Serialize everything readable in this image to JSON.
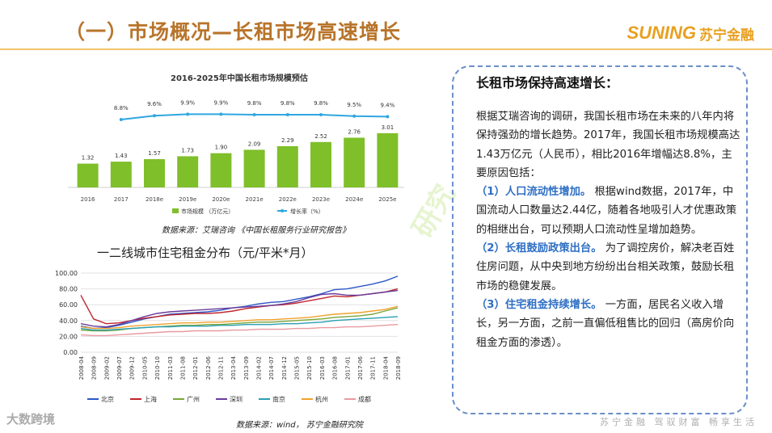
{
  "header": {
    "title": "（一）市场概况—长租市场高速增长",
    "logo_en": "SUNING",
    "logo_cn": "苏宁金融"
  },
  "chart1": {
    "title": "2016-2025年中国长租市场规模预估",
    "source": "数据来源：艾瑞咨询 《中国长租服务行业研究报告》",
    "legend_bar": "市场规模 （万亿元）",
    "legend_line": "增长率（%）"
  },
  "chart2": {
    "title": "一二线城市住宅租金分布（元/平米*月）",
    "source": "数据来源：wind，   苏宁金融研究院"
  },
  "chart_data": [
    {
      "type": "bar",
      "title": "2016-2025年中国长租市场规模预估",
      "categories": [
        "2016",
        "2017",
        "2018e",
        "2019e",
        "2020e",
        "2021e",
        "2022e",
        "2023e",
        "2024e",
        "2025e"
      ],
      "series": [
        {
          "name": "市场规模 （万亿元）",
          "values": [
            1.32,
            1.43,
            1.57,
            1.73,
            1.9,
            2.09,
            2.29,
            2.52,
            2.76,
            3.01
          ],
          "labels": [
            "1.32",
            "1.43",
            "1.57",
            "1.73",
            "1.90",
            "2.09",
            "2.29",
            "2.52",
            "2.76",
            "3.01"
          ]
        },
        {
          "name": "增长率（%）",
          "type": "line",
          "values": [
            null,
            8.8,
            9.6,
            9.9,
            9.9,
            9.8,
            9.8,
            9.8,
            9.5,
            9.4
          ],
          "labels": [
            "",
            "8.8%",
            "9.6%",
            "9.9%",
            "9.9%",
            "9.8%",
            "9.8%",
            "9.8%",
            "9.5%",
            "9.4%"
          ]
        }
      ],
      "colors": {
        "bar": "#7fbf2a",
        "line": "#2ea7e0"
      }
    },
    {
      "type": "line",
      "title": "一二线城市住宅租金分布（元/平米*月）",
      "x": [
        "2008-04",
        "2008-09",
        "2009-02",
        "2009-07",
        "2009-12",
        "2010-05",
        "2010-10",
        "2011-03",
        "2011-08",
        "2012-01",
        "2012-06",
        "2012-11",
        "2013-04",
        "2013-09",
        "2014-02",
        "2014-07",
        "2014-12",
        "2015-05",
        "2015-10",
        "2016-03",
        "2016-08",
        "2017-01",
        "2017-06",
        "2017-11",
        "2018-04",
        "2018-09"
      ],
      "ylim": [
        0,
        100
      ],
      "yticks": [
        "0.00",
        "20.00",
        "40.00",
        "60.00",
        "80.00",
        "100.00"
      ],
      "series": [
        {
          "name": "北京",
          "color": "#2b57c9",
          "values": [
            33,
            30,
            31,
            34,
            38,
            42,
            45,
            48,
            49,
            50,
            51,
            53,
            56,
            58,
            61,
            63,
            64,
            67,
            70,
            74,
            79,
            80,
            83,
            86,
            90,
            96
          ]
        },
        {
          "name": "上海",
          "color": "#c0262d",
          "values": [
            72,
            42,
            36,
            37,
            40,
            43,
            45,
            47,
            48,
            49,
            49,
            50,
            52,
            55,
            57,
            59,
            60,
            62,
            65,
            68,
            71,
            70,
            72,
            74,
            76,
            80
          ]
        },
        {
          "name": "广州",
          "color": "#7aa63a",
          "values": [
            28,
            27,
            27,
            28,
            30,
            31,
            32,
            33,
            34,
            34,
            35,
            35,
            36,
            37,
            38,
            38,
            39,
            40,
            41,
            42,
            44,
            45,
            46,
            48,
            52,
            56
          ]
        },
        {
          "name": "深圳",
          "color": "#6a3d9a",
          "values": [
            36,
            33,
            32,
            35,
            40,
            45,
            49,
            51,
            52,
            53,
            54,
            55,
            56,
            57,
            58,
            59,
            61,
            64,
            69,
            73,
            74,
            72,
            72,
            74,
            76,
            78
          ]
        },
        {
          "name": "南京",
          "color": "#2a9fb3",
          "values": [
            30,
            28,
            28,
            29,
            30,
            31,
            32,
            32,
            33,
            33,
            33,
            34,
            34,
            35,
            35,
            35,
            36,
            36,
            37,
            38,
            40,
            41,
            42,
            43,
            44,
            45
          ]
        },
        {
          "name": "杭州",
          "color": "#f0a22a",
          "values": [
            32,
            30,
            30,
            31,
            33,
            34,
            35,
            36,
            37,
            37,
            38,
            38,
            39,
            40,
            41,
            41,
            42,
            43,
            44,
            46,
            48,
            49,
            50,
            52,
            54,
            58
          ]
        },
        {
          "name": "成都",
          "color": "#e89aa0",
          "values": [
            22,
            21,
            21,
            22,
            23,
            24,
            25,
            26,
            26,
            27,
            27,
            27,
            28,
            28,
            29,
            29,
            29,
            30,
            30,
            31,
            31,
            32,
            32,
            33,
            34,
            35
          ]
        }
      ]
    }
  ],
  "panel": {
    "title": "长租市场保持高速增长：",
    "intro": "根据艾瑞咨询的调研，我国长租市场在未来的八年内将保持强劲的增长趋势。2017年，我国长租市场规模高达1.43万亿元（人民币），相比2016年增幅达8.8%，主要原因包括：",
    "p1_head": "（1）人口流动性增加。",
    "p1_body": "根据wind数据，2017年，中国流动人口数量达2.44亿，随着各地吸引人才优惠政策的相继出台，可以预期人口流动性呈增加趋势。",
    "p2_head": "（2）长租鼓励政策出台。",
    "p2_body": "为了调控房价，解决老百姓住房问题，从中央到地方纷纷出台相关政策，鼓励长租市场的稳健发展。",
    "p3_head": "（3）住宅租金持续增长。",
    "p3_body": "一方面，居民名义收入增长，另一方面，之前一直偏低租售比的回归（高房价向租金方面的渗透）。"
  },
  "footer": {
    "left": "大数跨境",
    "right": "苏宁金融  驾驭财富  畅享生活"
  },
  "watermark": "研究"
}
